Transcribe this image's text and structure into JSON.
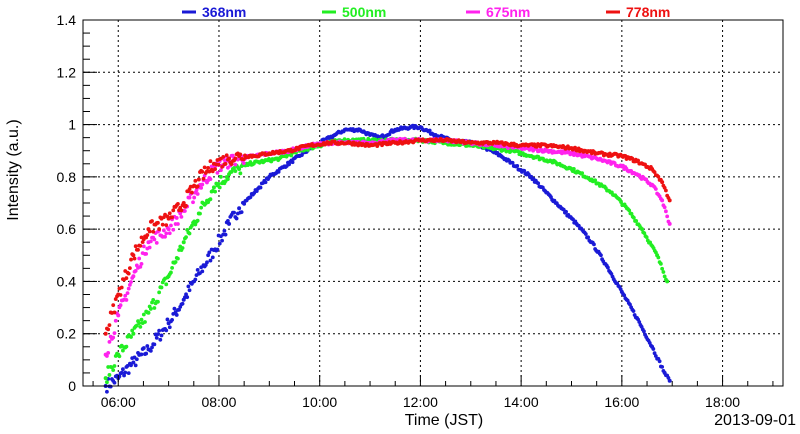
{
  "chart_data": {
    "type": "scatter",
    "title": "",
    "xlabel": "Time (JST)",
    "ylabel": "Intensity (a.u.)",
    "date_note": "2013-09-01",
    "xlim": [
      5.3,
      19.2
    ],
    "ylim": [
      0,
      1.4
    ],
    "x_ticks": [
      {
        "value": 6,
        "label": "06:00"
      },
      {
        "value": 8,
        "label": "08:00"
      },
      {
        "value": 10,
        "label": "10:00"
      },
      {
        "value": 12,
        "label": "12:00"
      },
      {
        "value": 14,
        "label": "14:00"
      },
      {
        "value": 16,
        "label": "16:00"
      },
      {
        "value": 18,
        "label": "18:00"
      }
    ],
    "y_ticks": [
      {
        "value": 0,
        "label": "0"
      },
      {
        "value": 0.2,
        "label": "0.2"
      },
      {
        "value": 0.4,
        "label": "0.4"
      },
      {
        "value": 0.6,
        "label": "0.6"
      },
      {
        "value": 0.8,
        "label": "0.8"
      },
      {
        "value": 1,
        "label": "1"
      },
      {
        "value": 1.2,
        "label": "1.2"
      },
      {
        "value": 1.4,
        "label": "1.4"
      }
    ],
    "grid": true,
    "legend_position": "top",
    "series": [
      {
        "name": "368nm",
        "color": "#1a1ad6",
        "points": [
          [
            5.75,
            0.0
          ],
          [
            6.0,
            0.03
          ],
          [
            6.3,
            0.09
          ],
          [
            6.6,
            0.14
          ],
          [
            7.0,
            0.24
          ],
          [
            7.3,
            0.33
          ],
          [
            7.6,
            0.43
          ],
          [
            7.9,
            0.52
          ],
          [
            8.2,
            0.62
          ],
          [
            8.4,
            0.68
          ],
          [
            8.6,
            0.72
          ],
          [
            8.8,
            0.76
          ],
          [
            9.0,
            0.8
          ],
          [
            9.3,
            0.84
          ],
          [
            9.6,
            0.88
          ],
          [
            9.9,
            0.92
          ],
          [
            10.1,
            0.94
          ],
          [
            10.3,
            0.96
          ],
          [
            10.5,
            0.98
          ],
          [
            10.8,
            0.98
          ],
          [
            11.0,
            0.96
          ],
          [
            11.2,
            0.95
          ],
          [
            11.5,
            0.98
          ],
          [
            11.8,
            0.99
          ],
          [
            12.0,
            0.99
          ],
          [
            12.3,
            0.96
          ],
          [
            12.6,
            0.94
          ],
          [
            13.0,
            0.93
          ],
          [
            13.3,
            0.91
          ],
          [
            13.6,
            0.88
          ],
          [
            13.9,
            0.84
          ],
          [
            14.2,
            0.8
          ],
          [
            14.5,
            0.74
          ],
          [
            14.8,
            0.68
          ],
          [
            15.1,
            0.62
          ],
          [
            15.4,
            0.55
          ],
          [
            15.7,
            0.46
          ],
          [
            16.0,
            0.36
          ],
          [
            16.3,
            0.26
          ],
          [
            16.6,
            0.15
          ],
          [
            16.85,
            0.05
          ],
          [
            16.95,
            0.02
          ]
        ]
      },
      {
        "name": "500nm",
        "color": "#22ee22",
        "points": [
          [
            5.75,
            0.03
          ],
          [
            6.0,
            0.12
          ],
          [
            6.3,
            0.2
          ],
          [
            6.6,
            0.28
          ],
          [
            7.0,
            0.42
          ],
          [
            7.3,
            0.55
          ],
          [
            7.6,
            0.66
          ],
          [
            7.9,
            0.76
          ],
          [
            8.2,
            0.81
          ],
          [
            8.4,
            0.83
          ],
          [
            8.6,
            0.85
          ],
          [
            8.9,
            0.86
          ],
          [
            9.2,
            0.87
          ],
          [
            9.6,
            0.9
          ],
          [
            10.0,
            0.92
          ],
          [
            10.4,
            0.94
          ],
          [
            10.8,
            0.94
          ],
          [
            11.2,
            0.94
          ],
          [
            11.6,
            0.94
          ],
          [
            12.0,
            0.94
          ],
          [
            12.5,
            0.93
          ],
          [
            13.0,
            0.92
          ],
          [
            13.4,
            0.91
          ],
          [
            13.8,
            0.9
          ],
          [
            14.2,
            0.88
          ],
          [
            14.6,
            0.86
          ],
          [
            15.0,
            0.83
          ],
          [
            15.4,
            0.79
          ],
          [
            15.8,
            0.74
          ],
          [
            16.1,
            0.68
          ],
          [
            16.4,
            0.6
          ],
          [
            16.7,
            0.5
          ],
          [
            16.9,
            0.4
          ]
        ]
      },
      {
        "name": "675nm",
        "color": "#ff22ee",
        "points": [
          [
            5.75,
            0.12
          ],
          [
            6.0,
            0.27
          ],
          [
            6.3,
            0.42
          ],
          [
            6.6,
            0.55
          ],
          [
            7.0,
            0.6
          ],
          [
            7.3,
            0.67
          ],
          [
            7.6,
            0.76
          ],
          [
            7.9,
            0.83
          ],
          [
            8.2,
            0.86
          ],
          [
            8.4,
            0.87
          ],
          [
            8.7,
            0.88
          ],
          [
            9.0,
            0.89
          ],
          [
            9.4,
            0.9
          ],
          [
            9.8,
            0.92
          ],
          [
            10.2,
            0.93
          ],
          [
            10.6,
            0.93
          ],
          [
            11.0,
            0.93
          ],
          [
            11.5,
            0.94
          ],
          [
            12.0,
            0.94
          ],
          [
            12.5,
            0.94
          ],
          [
            13.0,
            0.93
          ],
          [
            13.5,
            0.92
          ],
          [
            14.0,
            0.91
          ],
          [
            14.5,
            0.9
          ],
          [
            15.0,
            0.89
          ],
          [
            15.5,
            0.87
          ],
          [
            16.0,
            0.84
          ],
          [
            16.3,
            0.81
          ],
          [
            16.6,
            0.77
          ],
          [
            16.8,
            0.71
          ],
          [
            16.95,
            0.62
          ]
        ]
      },
      {
        "name": "778nm",
        "color": "#ee1111",
        "points": [
          [
            5.75,
            0.2
          ],
          [
            6.0,
            0.35
          ],
          [
            6.3,
            0.5
          ],
          [
            6.6,
            0.6
          ],
          [
            7.0,
            0.64
          ],
          [
            7.3,
            0.7
          ],
          [
            7.6,
            0.79
          ],
          [
            7.9,
            0.85
          ],
          [
            8.2,
            0.87
          ],
          [
            8.4,
            0.88
          ],
          [
            8.7,
            0.88
          ],
          [
            9.0,
            0.89
          ],
          [
            9.4,
            0.9
          ],
          [
            9.8,
            0.92
          ],
          [
            10.2,
            0.93
          ],
          [
            10.6,
            0.93
          ],
          [
            11.0,
            0.92
          ],
          [
            11.5,
            0.93
          ],
          [
            12.0,
            0.94
          ],
          [
            12.5,
            0.94
          ],
          [
            13.0,
            0.93
          ],
          [
            13.5,
            0.93
          ],
          [
            14.0,
            0.92
          ],
          [
            14.5,
            0.92
          ],
          [
            15.0,
            0.91
          ],
          [
            15.5,
            0.89
          ],
          [
            16.0,
            0.88
          ],
          [
            16.3,
            0.86
          ],
          [
            16.6,
            0.83
          ],
          [
            16.8,
            0.78
          ],
          [
            16.95,
            0.71
          ]
        ]
      }
    ]
  }
}
